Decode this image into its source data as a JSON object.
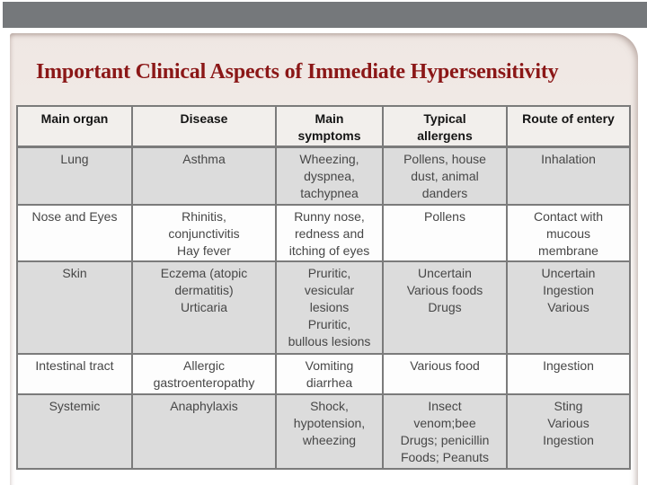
{
  "slide": {
    "title": "Important Clinical Aspects of Immediate Hypersensitivity"
  },
  "colors": {
    "title": "#8b1717",
    "top_bar": "#75787b",
    "table_border": "#7b7b7b",
    "row_shaded": "#dcdcdc",
    "row_light": "#fdfdfd",
    "header_bg": "#f2efec"
  },
  "table": {
    "columns": [
      "Main organ",
      "Disease",
      "Main\nsymptoms",
      "Typical\nallergens",
      "Route of entery"
    ],
    "rows": [
      {
        "cells": [
          "Lung",
          "Asthma",
          "Wheezing,\ndyspnea,\ntachypnea",
          "Pollens, house\ndust, animal\ndanders",
          "Inhalation"
        ]
      },
      {
        "cells": [
          "Nose and Eyes",
          "Rhinitis,\nconjunctivitis\nHay fever",
          "Runny nose,\nredness and\nitching of eyes",
          "Pollens",
          "Contact with\nmucous\nmembrane"
        ]
      },
      {
        "cells": [
          "Skin",
          "Eczema (atopic\ndermatitis)\nUrticaria",
          "Pruritic,\nvesicular\nlesions\nPruritic,\nbullous lesions",
          "Uncertain\nVarious foods\nDrugs",
          "Uncertain\nIngestion\nVarious"
        ]
      },
      {
        "cells": [
          "Intestinal tract",
          "Allergic\ngastroenteropathy",
          "Vomiting\ndiarrhea",
          "Various food",
          "Ingestion"
        ]
      },
      {
        "cells": [
          "Systemic",
          "Anaphylaxis",
          "Shock,\nhypotension,\nwheezing",
          "Insect\nvenom;bee\nDrugs; penicillin\nFoods; Peanuts",
          "Sting\nVarious\nIngestion"
        ]
      }
    ]
  }
}
